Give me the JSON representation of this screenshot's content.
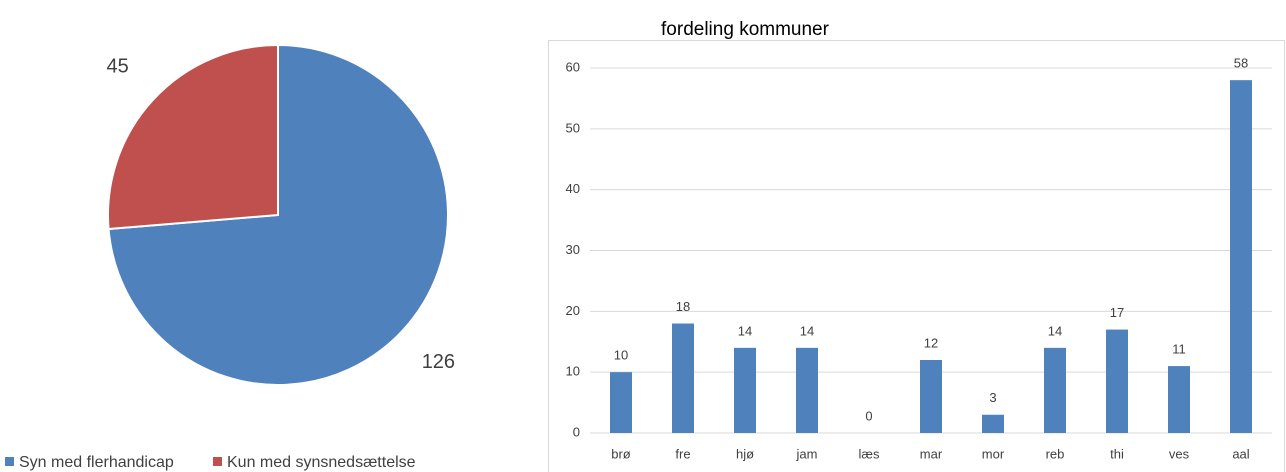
{
  "chart_data": [
    {
      "type": "pie",
      "categories": [
        "Syn med flerhandicap",
        "Kun med synsnedsættelse"
      ],
      "values": [
        126,
        45
      ],
      "colors": [
        "#4f81bd",
        "#c0504d"
      ]
    },
    {
      "type": "bar",
      "title": "fordeling kommuner",
      "categories": [
        "brø",
        "fre",
        "hjø",
        "jam",
        "læs",
        "mar",
        "mor",
        "reb",
        "thi",
        "ves",
        "aal"
      ],
      "values": [
        10,
        18,
        14,
        14,
        0,
        12,
        3,
        14,
        17,
        11,
        58
      ],
      "color": "#4f81bd",
      "ylim": [
        0,
        60
      ],
      "yticks": [
        0,
        10,
        20,
        30,
        40,
        50,
        60
      ],
      "grid": true
    }
  ]
}
